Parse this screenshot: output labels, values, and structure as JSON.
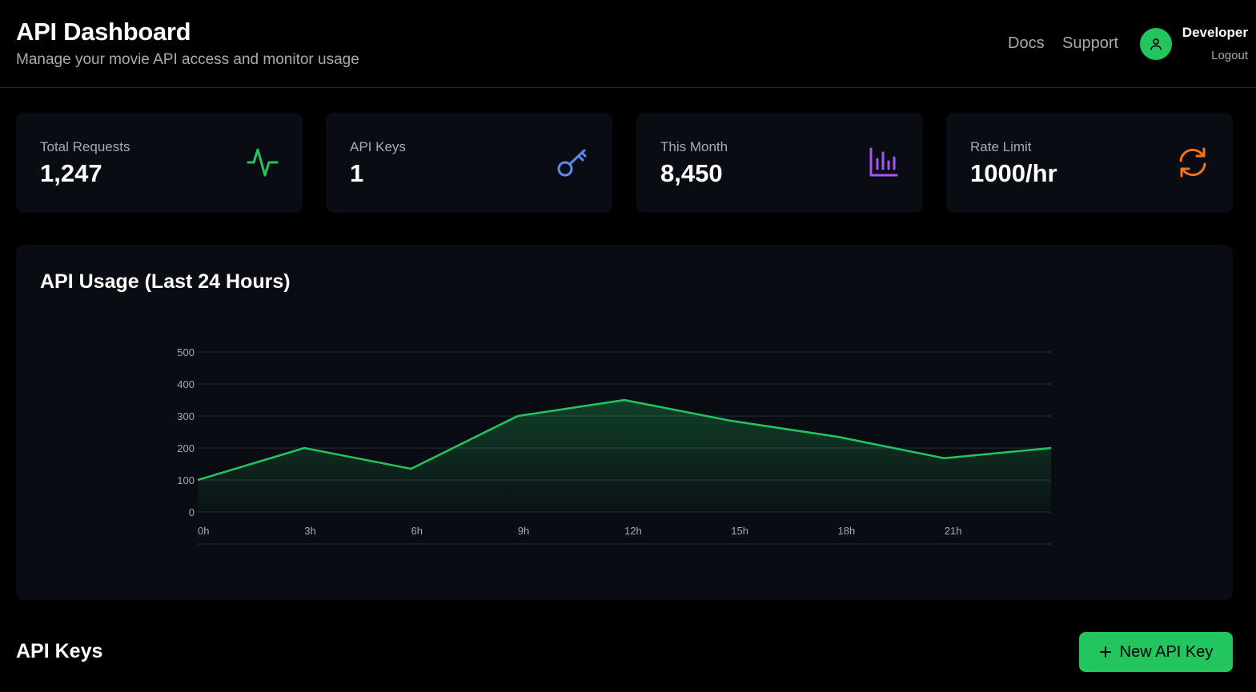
{
  "header": {
    "title": "API Dashboard",
    "subtitle": "Manage your movie API access and monitor usage",
    "nav": {
      "docs": "Docs",
      "support": "Support"
    },
    "user": {
      "name": "Developer",
      "logout": "Logout"
    }
  },
  "stats": [
    {
      "label": "Total Requests",
      "value": "1,247",
      "icon": "activity-icon",
      "color": "#22c55e"
    },
    {
      "label": "API Keys",
      "value": "1",
      "icon": "key-icon",
      "color": "#5b8def"
    },
    {
      "label": "This Month",
      "value": "8,450",
      "icon": "bar-chart-icon",
      "color": "#a855f7"
    },
    {
      "label": "Rate Limit",
      "value": "1000/hr",
      "icon": "refresh-icon",
      "color": "#f97316"
    }
  ],
  "usage": {
    "title": "API Usage (Last 24 Hours)"
  },
  "chart_data": {
    "type": "area",
    "title": "API Usage (Last 24 Hours)",
    "x": [
      0,
      3,
      6,
      9,
      12,
      15,
      18,
      21,
      24
    ],
    "categories": [
      "0h",
      "3h",
      "6h",
      "9h",
      "12h",
      "15h",
      "18h",
      "21h"
    ],
    "values": [
      100,
      200,
      135,
      300,
      350,
      285,
      235,
      168,
      200
    ],
    "ylim": [
      0,
      500
    ],
    "yticks": [
      0,
      100,
      200,
      300,
      400,
      500
    ],
    "grid": true,
    "color": "#22c55e"
  },
  "keys": {
    "title": "API Keys",
    "new_button": "New API Key"
  }
}
